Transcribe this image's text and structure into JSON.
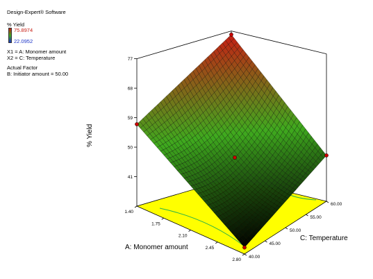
{
  "software": "Design-Expert® Software",
  "legend": {
    "response": "% Yield",
    "high": "75.8974",
    "low": "22.0952",
    "x1": "X1 = A: Monomer amount",
    "x2": "X2 = C: Temperature",
    "actual_factor_title": "Actual Factor",
    "actual_factor": "B: Initiator amount = 50.00"
  },
  "colors": {
    "surface_high": "#c81e14",
    "surface_mid": "#3faa1e",
    "surface_low": "#000000",
    "floor": "#ffff00",
    "contour": "#2bb24a",
    "design_point": "#cc0000"
  },
  "chart_data": {
    "type": "surface",
    "xlabel": "A: Monomer amount",
    "ylabel": "C: Temperature",
    "zlabel": "% Yield",
    "xticks": [
      "1.40",
      "1.75",
      "2.10",
      "2.45",
      "2.80"
    ],
    "yticks": [
      "40.00",
      "45.00",
      "50.00",
      "55.00",
      "60.00"
    ],
    "zticks": [
      "41",
      "50",
      "59",
      "68",
      "77"
    ],
    "xlim": [
      1.4,
      2.8
    ],
    "ylim": [
      40,
      60
    ],
    "zlim": [
      32,
      77
    ],
    "corner_values": [
      {
        "x": 1.4,
        "y": 40,
        "z": 57
      },
      {
        "x": 1.4,
        "y": 60,
        "z": 75.9
      },
      {
        "x": 2.8,
        "y": 60,
        "z": 46
      },
      {
        "x": 2.8,
        "y": 40,
        "z": 34
      }
    ],
    "interior_value": {
      "x": 2.1,
      "y": 50,
      "z": 48
    }
  }
}
